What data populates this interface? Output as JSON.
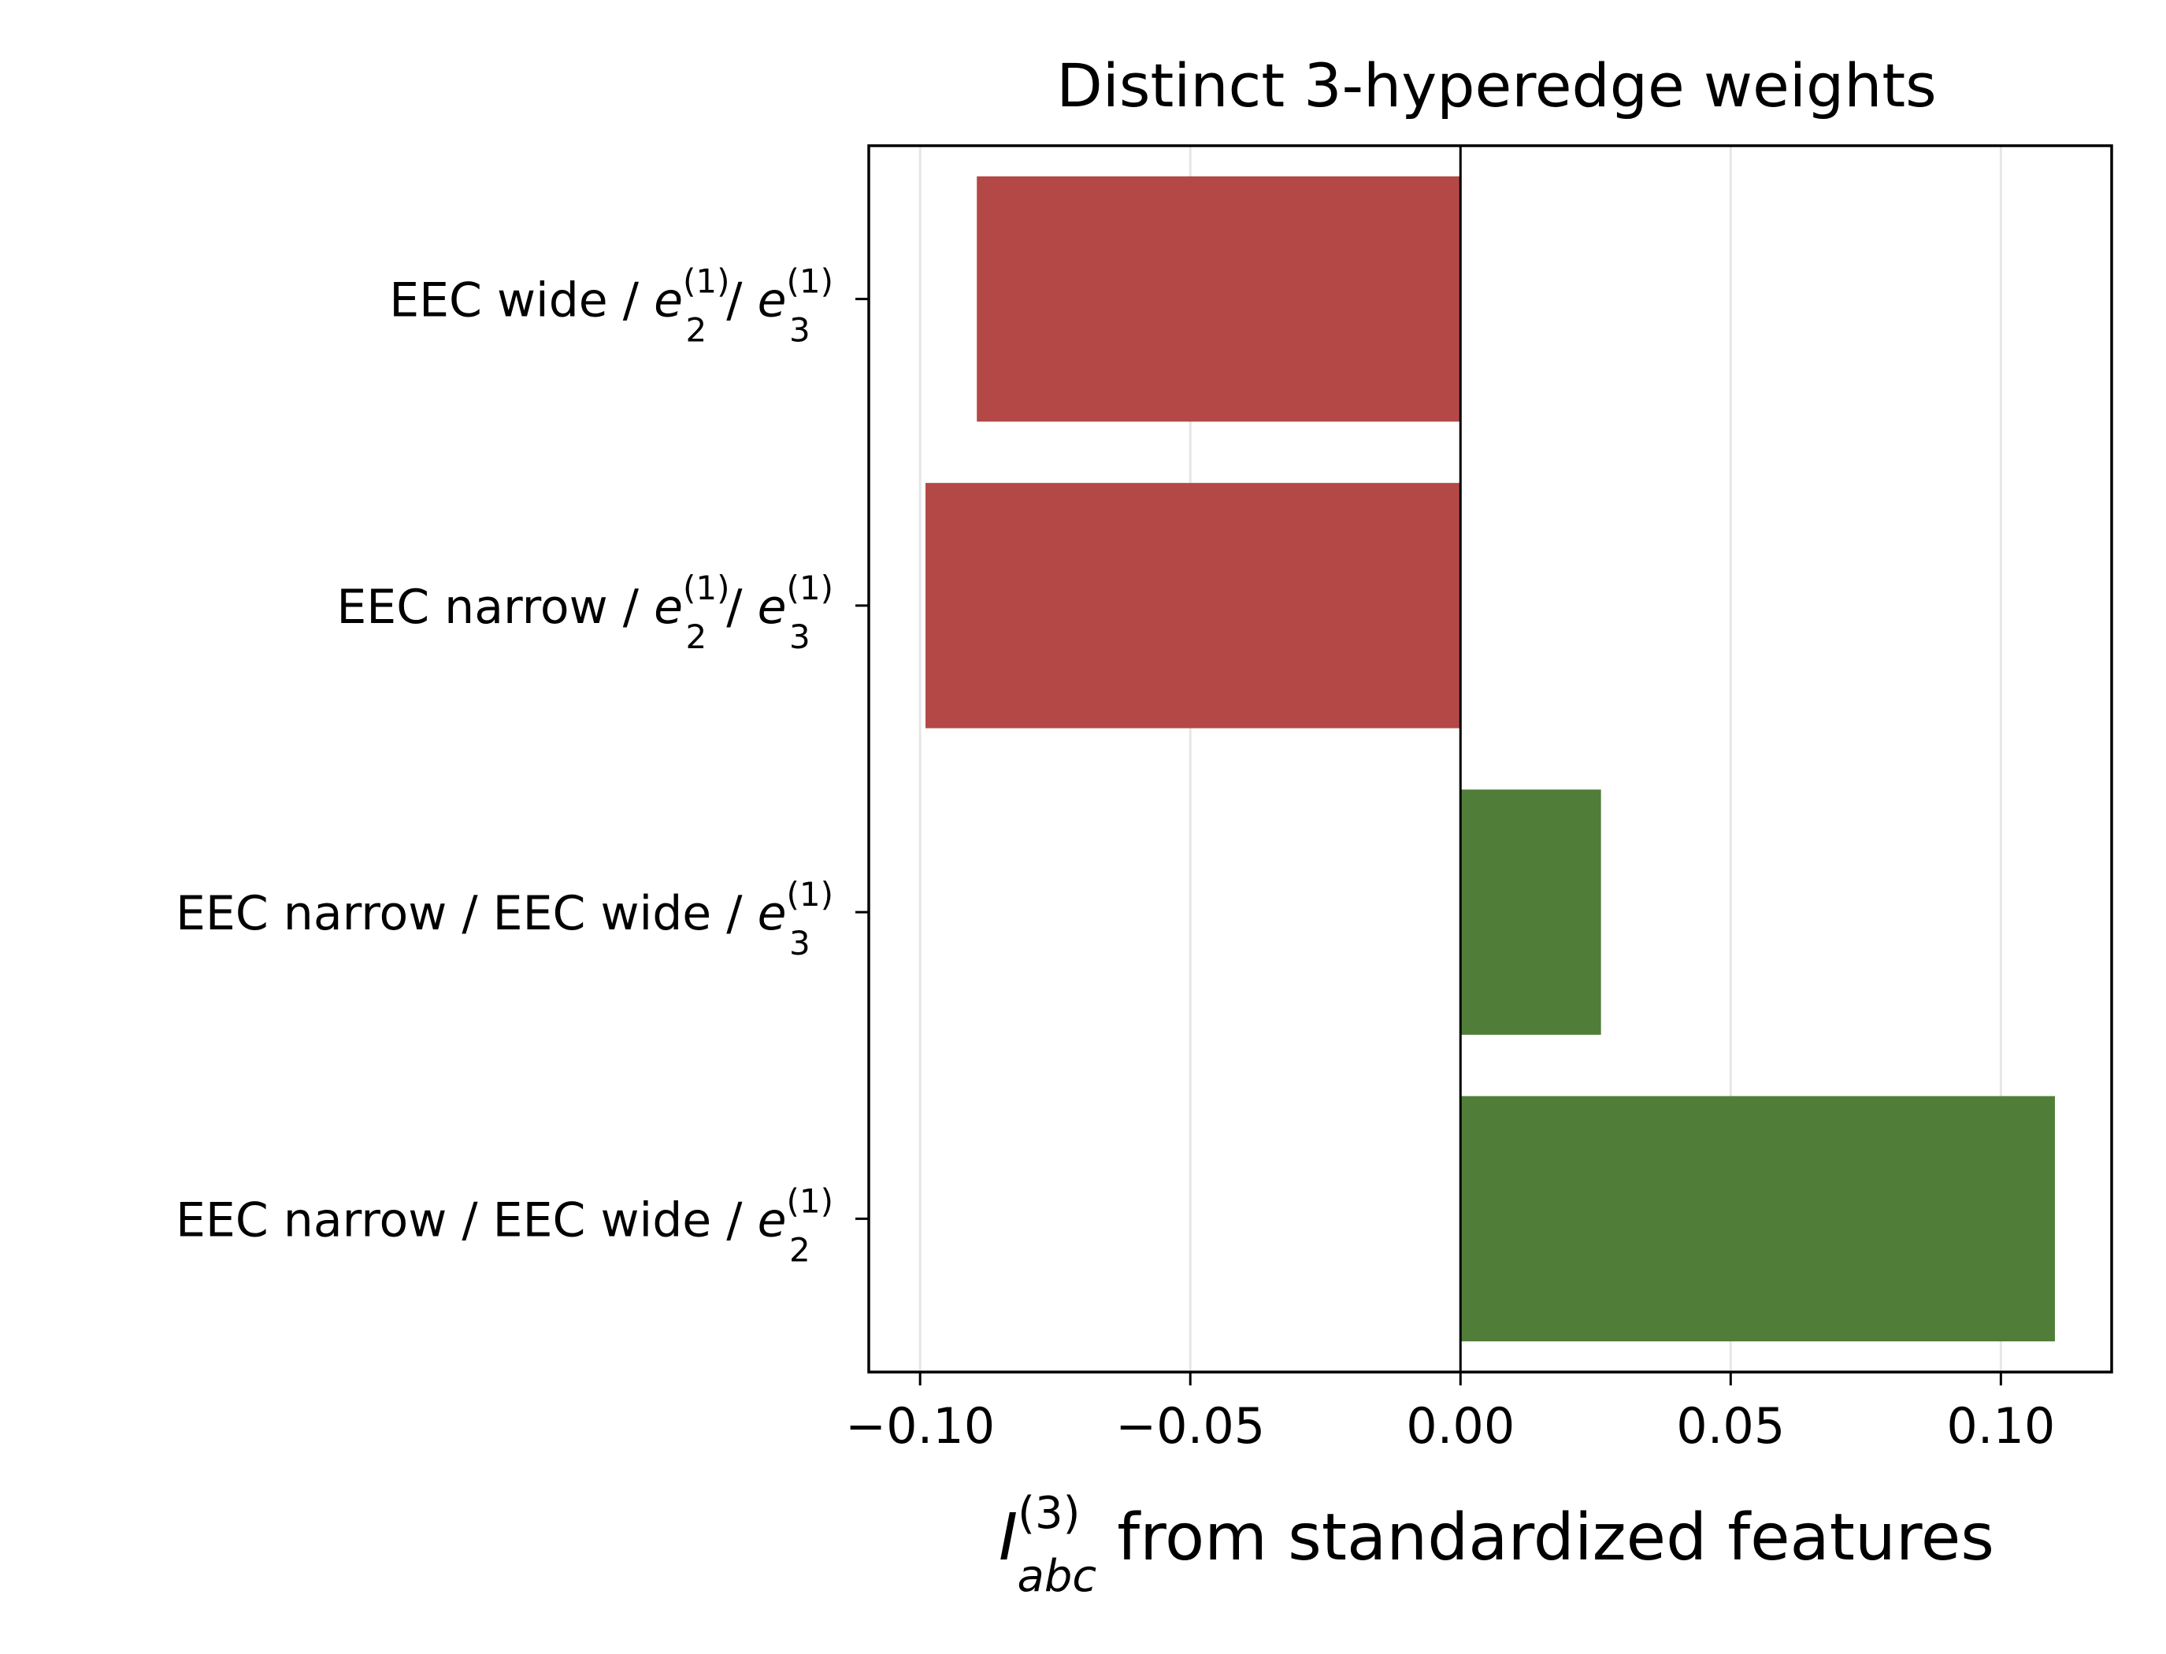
{
  "chart_data": {
    "type": "bar",
    "orientation": "horizontal",
    "title": "Distinct 3-hyperedge weights",
    "xlabel": {
      "symbol": "I",
      "sub": "abc",
      "sup": "(3)",
      "text": " from standardized features"
    },
    "ylabel": "",
    "xlim": [
      -0.1095,
      0.1205
    ],
    "xticks": [
      -0.1,
      -0.05,
      0.0,
      0.05,
      0.1
    ],
    "xtick_labels": [
      "−0.10",
      "−0.05",
      "0.00",
      "0.05",
      "0.10"
    ],
    "grid": {
      "x": true,
      "y": false
    },
    "zero_line": true,
    "colors": {
      "negative": "#b34846",
      "positive": "#507e39",
      "grid": "#e6e6e6",
      "axis": "#000000"
    },
    "bars": [
      {
        "label": {
          "prefix": "EEC wide / ",
          "terms": [
            {
              "base": "e",
              "sub": "2",
              "sup": "(1)"
            },
            {
              "base": "e",
              "sub": "3",
              "sup": "(1)"
            }
          ]
        },
        "value": -0.0895
      },
      {
        "label": {
          "prefix": "EEC narrow / ",
          "terms": [
            {
              "base": "e",
              "sub": "2",
              "sup": "(1)"
            },
            {
              "base": "e",
              "sub": "3",
              "sup": "(1)"
            }
          ]
        },
        "value": -0.099
      },
      {
        "label": {
          "prefix": "EEC narrow / EEC wide / ",
          "terms": [
            {
              "base": "e",
              "sub": "3",
              "sup": "(1)"
            }
          ]
        },
        "value": 0.026
      },
      {
        "label": {
          "prefix": "EEC narrow / EEC wide / ",
          "terms": [
            {
              "base": "e",
              "sub": "2",
              "sup": "(1)"
            }
          ]
        },
        "value": 0.11
      }
    ]
  }
}
